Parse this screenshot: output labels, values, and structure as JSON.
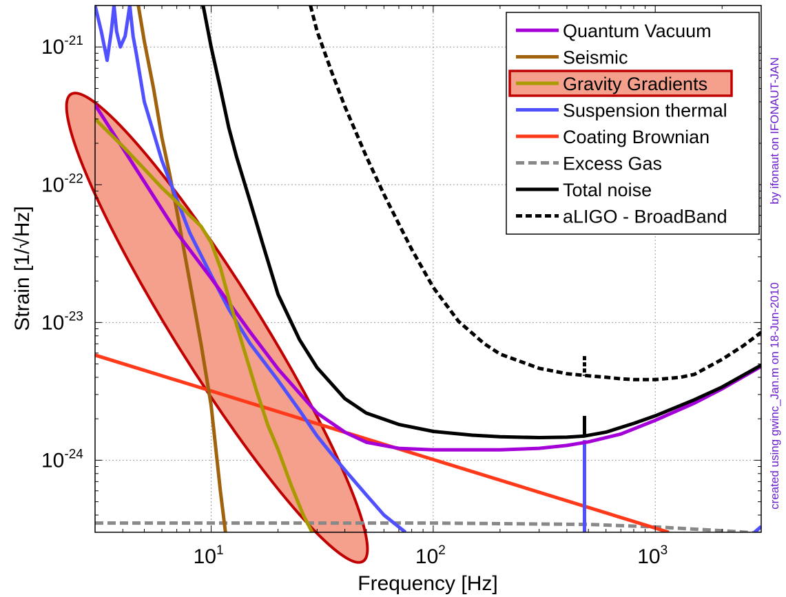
{
  "chart_data": {
    "type": "line",
    "title": "",
    "xlabel": "Frequency [Hz]",
    "ylabel": "Strain [1/√Hz]",
    "xscale": "log",
    "yscale": "log",
    "xlim": [
      3,
      3000
    ],
    "ylim": [
      3e-25,
      2e-21
    ],
    "grid": true,
    "legend_position": "top-right",
    "x_ticks": [
      {
        "value": 10,
        "base": "10",
        "exp": "1"
      },
      {
        "value": 100,
        "base": "10",
        "exp": "2"
      },
      {
        "value": 1000,
        "base": "10",
        "exp": "3"
      }
    ],
    "y_ticks": [
      {
        "value": 1e-21,
        "base": "10",
        "exp": "-21"
      },
      {
        "value": 1e-22,
        "base": "10",
        "exp": "-22"
      },
      {
        "value": 1e-23,
        "base": "10",
        "exp": "-23"
      },
      {
        "value": 1e-24,
        "base": "10",
        "exp": "-24"
      }
    ],
    "series": [
      {
        "name": "Quantum Vacuum",
        "color": "#a400d8",
        "dash": "solid",
        "points": [
          [
            3,
            3.8e-22
          ],
          [
            5,
            1.05e-22
          ],
          [
            7,
            4.5e-23
          ],
          [
            10,
            2.1e-23
          ],
          [
            15,
            8.5e-24
          ],
          [
            20,
            4.6e-24
          ],
          [
            30,
            2.2e-24
          ],
          [
            40,
            1.6e-24
          ],
          [
            50,
            1.35e-24
          ],
          [
            70,
            1.22e-24
          ],
          [
            100,
            1.19e-24
          ],
          [
            200,
            1.19e-24
          ],
          [
            300,
            1.22e-24
          ],
          [
            400,
            1.28e-24
          ],
          [
            500,
            1.36e-24
          ],
          [
            700,
            1.55e-24
          ],
          [
            1000,
            1.95e-24
          ],
          [
            1500,
            2.6e-24
          ],
          [
            2000,
            3.3e-24
          ],
          [
            3000,
            4.8e-24
          ]
        ]
      },
      {
        "name": "Seismic",
        "color": "#a0620c",
        "dash": "solid",
        "points": [
          [
            4.7,
            2e-21
          ],
          [
            5,
            1.1e-21
          ],
          [
            5.5,
            5e-22
          ],
          [
            6,
            2.2e-22
          ],
          [
            6.5,
            1.2e-22
          ],
          [
            7,
            6.5e-23
          ],
          [
            8,
            2e-23
          ],
          [
            9,
            7e-24
          ],
          [
            10,
            2.5e-24
          ],
          [
            10.5,
            1.2e-24
          ],
          [
            11,
            6e-25
          ],
          [
            11.6,
            3e-25
          ]
        ]
      },
      {
        "name": "Gravity Gradients",
        "color": "#a89a00",
        "dash": "solid",
        "points": [
          [
            3,
            3e-22
          ],
          [
            4,
            1.9e-22
          ],
          [
            5,
            1.3e-22
          ],
          [
            6,
            9.5e-23
          ],
          [
            7,
            7.5e-23
          ],
          [
            8,
            6e-23
          ],
          [
            9,
            5e-23
          ],
          [
            10,
            3.8e-23
          ],
          [
            11,
            2.5e-23
          ],
          [
            12,
            1.5e-23
          ],
          [
            14,
            6.5e-24
          ],
          [
            16,
            3.2e-24
          ],
          [
            18,
            1.8e-24
          ],
          [
            20,
            1.2e-24
          ],
          [
            23,
            6.5e-25
          ],
          [
            26,
            4e-25
          ],
          [
            28.5,
            3e-25
          ]
        ]
      },
      {
        "name": "Suspension thermal",
        "color": "#5050ff",
        "dash": "solid",
        "points": [
          [
            3,
            2e-21
          ],
          [
            3.2,
            1.3e-21
          ],
          [
            3.4,
            8e-22
          ],
          [
            3.55,
            1.3e-21
          ],
          [
            3.65,
            2e-21
          ],
          [
            3.75,
            1.3e-21
          ],
          [
            3.9,
            1e-21
          ],
          [
            4.1,
            1.2e-21
          ],
          [
            4.3,
            2e-21
          ],
          [
            4.45,
            1.2e-21
          ],
          [
            4.6,
            9e-22
          ],
          [
            5,
            4e-22
          ],
          [
            6,
            1.5e-22
          ],
          [
            8,
            4.5e-23
          ],
          [
            10,
            2.2e-23
          ],
          [
            12,
            1.25e-23
          ],
          [
            15,
            7e-24
          ],
          [
            20,
            3.8e-24
          ],
          [
            25,
            2.3e-24
          ],
          [
            30,
            1.5e-24
          ],
          [
            35,
            1.1e-24
          ],
          [
            40,
            8.5e-25
          ],
          [
            50,
            5.6e-25
          ],
          [
            60,
            4e-25
          ],
          [
            75,
            3e-25
          ]
        ],
        "resonance": {
          "x": 480,
          "y_top": 1.4e-24,
          "y_bottom": 3e-25
        },
        "tail": [
          [
            2800,
            3e-25
          ],
          [
            3000,
            3.3e-25
          ]
        ]
      },
      {
        "name": "Coating Brownian",
        "color": "#ff3a1a",
        "dash": "solid",
        "points": [
          [
            3,
            5.8e-24
          ],
          [
            1150,
            3e-25
          ]
        ]
      },
      {
        "name": "Excess Gas",
        "color": "#888888",
        "dash": "dashed",
        "points": [
          [
            3,
            3.5e-25
          ],
          [
            100,
            3.5e-25
          ],
          [
            500,
            3.42e-25
          ],
          [
            1000,
            3.28e-25
          ],
          [
            2000,
            3.08e-25
          ],
          [
            3000,
            2.95e-25
          ]
        ]
      },
      {
        "name": "Total noise",
        "color": "#000000",
        "dash": "solid",
        "points": [
          [
            9.2,
            2e-21
          ],
          [
            10,
            1e-21
          ],
          [
            11,
            5e-22
          ],
          [
            12,
            2.6e-22
          ],
          [
            13,
            1.6e-22
          ],
          [
            15,
            7.5e-23
          ],
          [
            17,
            3.8e-23
          ],
          [
            20,
            1.6e-23
          ],
          [
            25,
            7.5e-24
          ],
          [
            30,
            4.7e-24
          ],
          [
            40,
            2.8e-24
          ],
          [
            50,
            2.2e-24
          ],
          [
            70,
            1.82e-24
          ],
          [
            100,
            1.62e-24
          ],
          [
            150,
            1.52e-24
          ],
          [
            200,
            1.48e-24
          ],
          [
            300,
            1.46e-24
          ],
          [
            400,
            1.47e-24
          ],
          [
            480,
            1.5e-24
          ],
          [
            600,
            1.6e-24
          ],
          [
            800,
            1.85e-24
          ],
          [
            1000,
            2.1e-24
          ],
          [
            1500,
            2.75e-24
          ],
          [
            2000,
            3.4e-24
          ],
          [
            3000,
            4.9e-24
          ]
        ],
        "resonance": {
          "x": 480,
          "y_top": 2.1e-24,
          "y_bottom": 1.5e-24
        }
      },
      {
        "name": "aLIGO - BroadBand",
        "color": "#000000",
        "dash": "dashed",
        "points": [
          [
            28,
            2e-21
          ],
          [
            30,
            1.3e-21
          ],
          [
            35,
            6.5e-22
          ],
          [
            40,
            3.7e-22
          ],
          [
            50,
            1.6e-22
          ],
          [
            60,
            8.5e-23
          ],
          [
            70,
            5.2e-23
          ],
          [
            80,
            3.4e-23
          ],
          [
            100,
            1.8e-23
          ],
          [
            130,
            1.02e-23
          ],
          [
            170,
            7e-24
          ],
          [
            200,
            5.9e-24
          ],
          [
            300,
            4.65e-24
          ],
          [
            400,
            4.25e-24
          ],
          [
            500,
            4.1e-24
          ],
          [
            600,
            4e-24
          ],
          [
            700,
            3.9e-24
          ],
          [
            800,
            3.85e-24
          ],
          [
            1000,
            3.85e-24
          ],
          [
            1300,
            4e-24
          ],
          [
            1500,
            4.2e-24
          ],
          [
            2000,
            5.4e-24
          ],
          [
            2500,
            6.8e-24
          ],
          [
            3000,
            8.5e-24
          ]
        ],
        "resonance": {
          "x": 480,
          "y_top": 5.7e-24,
          "y_bottom": 4.1e-24
        }
      }
    ],
    "highlighted_series": "Gravity Gradients",
    "highlight_color": "#f4a08c",
    "highlight_border": "#c00000",
    "credits": [
      "by ifonaut on IFONAUT-JAN",
      "created using gwinc_Jan.m on 18-Jun-2010"
    ]
  }
}
